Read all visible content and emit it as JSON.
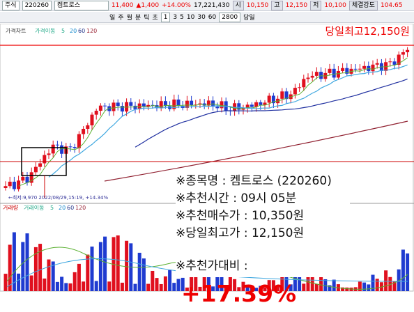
{
  "toolbar": {
    "market": "주식",
    "code": "220260",
    "name": "켐트로스",
    "price": "11,400",
    "change": "▲1,400",
    "change_pct": "+14.00%",
    "volume": "17,221,430",
    "open_label": "시",
    "open": "10,150",
    "high_label": "고",
    "high": "12,150",
    "low_label": "저",
    "low": "10,100",
    "strength_label": "체결강도",
    "strength": "104.65",
    "periods": [
      "일",
      "주",
      "월",
      "분",
      "틱",
      "초"
    ],
    "unit": "1",
    "minutes": [
      "3",
      "5",
      "10",
      "30",
      "60"
    ],
    "count": "2800",
    "today": "당일"
  },
  "price_panel": {
    "legend": "가격차트",
    "ma_legend": "가격이동",
    "ma_periods": [
      "5",
      "20",
      "60",
      "120"
    ],
    "high_label": "당일최고12,150원",
    "low_note": "←최저:9,970 2022/08/29,15:19, +14.34%"
  },
  "volume_panel": {
    "legend": "거래량",
    "ma_legend": "거래이동",
    "ma_periods": [
      "5",
      "20",
      "60",
      "120"
    ]
  },
  "info": {
    "lines": [
      "※종목명 : 켐트로스 (220260)",
      "※추천시간 : 09시 05분",
      "※추천매수가 : 10,350원",
      "※당일최고가 : 12,150원"
    ],
    "gain_label": "※추천가대비 :",
    "gain": "+17.39%"
  }
}
